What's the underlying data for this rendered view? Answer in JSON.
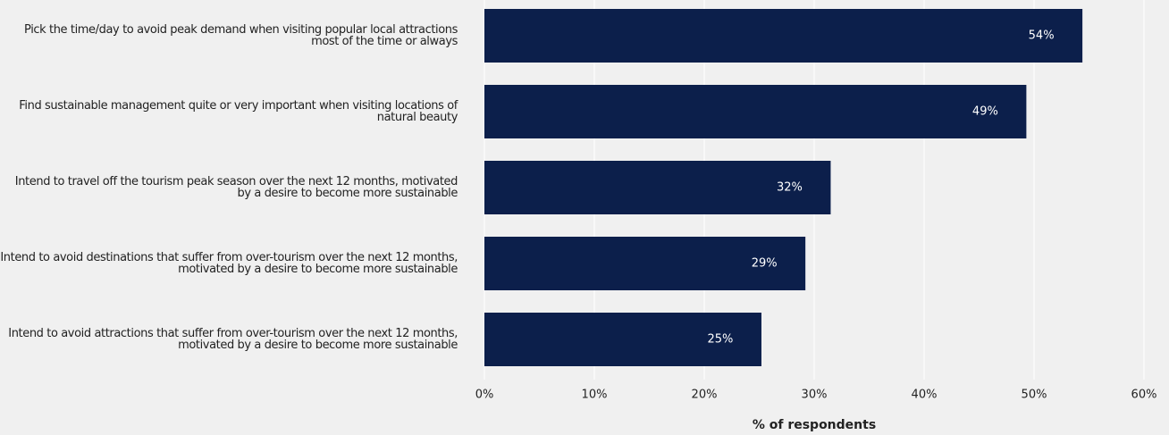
{
  "chart_data": {
    "type": "bar",
    "orientation": "horizontal",
    "x_label": "% of respondents",
    "categories": [
      "Pick the time/day to avoid peak demand when visiting popular local attractions most of the time or always",
      "Find sustainable management quite or very important when visiting locations of natural beauty",
      "Intend to travel off the tourism peak season over the next 12 months, motivated by a desire to become more sustainable",
      "Intend to avoid destinations that suffer from over-tourism over the next 12 months, motivated by a desire to become more sustainable",
      "Intend to avoid attractions that suffer from over-tourism over the next 12 months, motivated by a desire to become more sustainable"
    ],
    "values": [
      54.4,
      49.3,
      31.5,
      29.2,
      25.2
    ],
    "value_labels": [
      "54%",
      "49%",
      "32%",
      "29%",
      "25%"
    ],
    "color": "#0c1f4b",
    "xlim": [
      0,
      60
    ],
    "xticks": [
      {
        "value": 0,
        "label": "0%"
      },
      {
        "value": 10,
        "label": "10%"
      },
      {
        "value": 20,
        "label": "20%"
      },
      {
        "value": 30,
        "label": "30%"
      },
      {
        "value": 40,
        "label": "40%"
      },
      {
        "value": 50,
        "label": "50%"
      },
      {
        "value": 60,
        "label": "60%"
      }
    ],
    "grid": true
  }
}
